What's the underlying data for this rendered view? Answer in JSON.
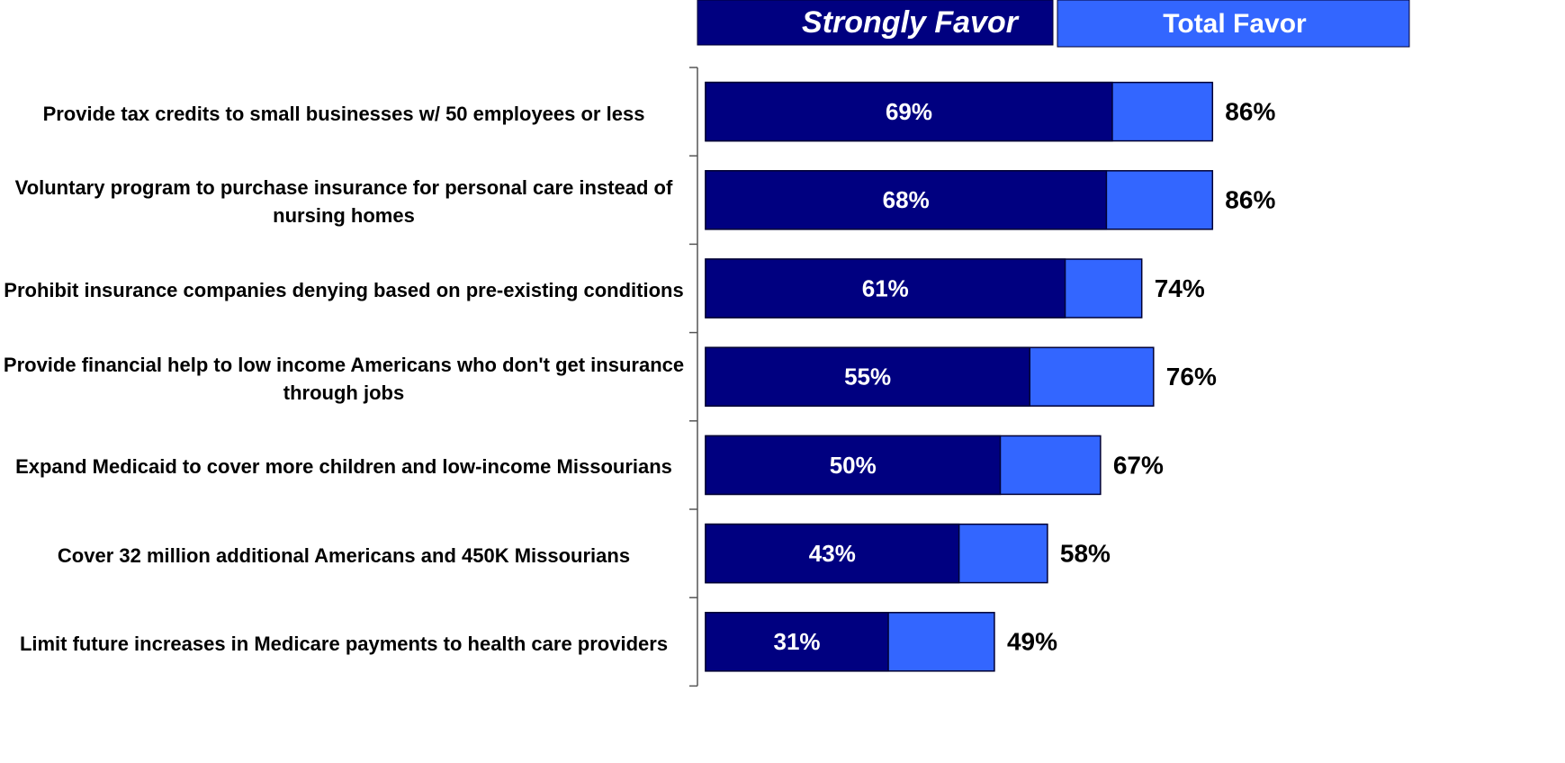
{
  "chart_data": {
    "type": "bar",
    "orientation": "horizontal",
    "categories": [
      "Provide tax credits to small businesses w/ 50 employees or less",
      "Voluntary program to purchase insurance for personal care instead of nursing homes",
      "Prohibit insurance companies denying based on pre-existing conditions",
      "Provide financial help to low income Americans who don't get insurance through jobs",
      "Expand Medicaid to cover more children and low-income Missourians",
      "Cover 32 million additional Americans and 450K Missourians",
      "Limit future increases in Medicare payments to health care providers"
    ],
    "series": [
      {
        "name": "Strongly Favor",
        "color": "#000080",
        "values": [
          69,
          68,
          61,
          55,
          50,
          43,
          31
        ],
        "value_labels": [
          "69%",
          "68%",
          "61%",
          "55%",
          "50%",
          "43%",
          "31%"
        ]
      },
      {
        "name": "Total Favor",
        "color": "#3366ff",
        "values": [
          86,
          86,
          74,
          76,
          67,
          58,
          49
        ],
        "value_labels": [
          "86%",
          "86%",
          "74%",
          "76%",
          "67%",
          "58%",
          "49%"
        ]
      }
    ]
  }
}
